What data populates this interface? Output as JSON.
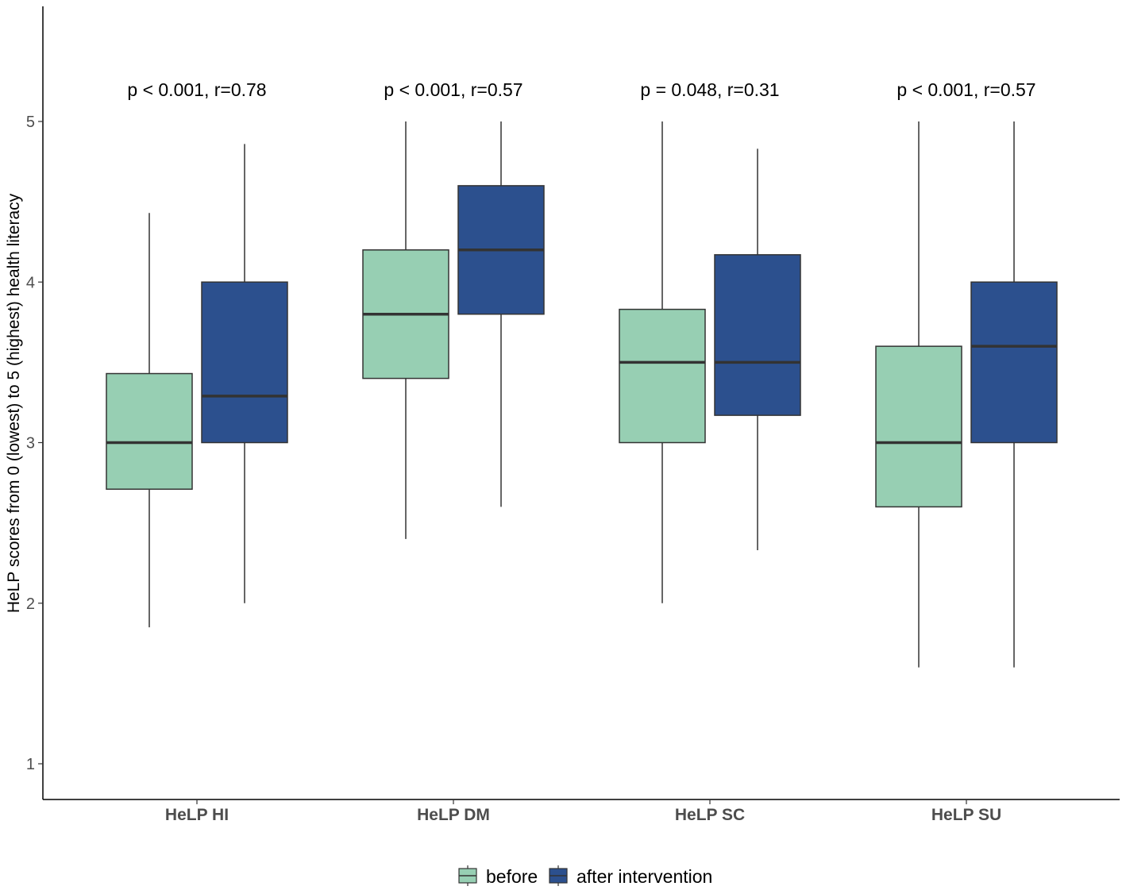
{
  "chart_data": {
    "type": "boxplot",
    "ylabel": "HeLP scores from 0 (lowest) to 5 (highest) health literacy",
    "xlabel": "",
    "ylim": [
      0.8,
      5.7
    ],
    "yticks": [
      1,
      2,
      3,
      4,
      5
    ],
    "categories": [
      "HeLP HI",
      "HeLP DM",
      "HeLP SC",
      "HeLP SU"
    ],
    "annotations": [
      "p < 0.001, r=0.78",
      "p < 0.001, r=0.57",
      "p = 0.048, r=0.31",
      "p < 0.001, r=0.57"
    ],
    "legend": {
      "position": "bottom"
    },
    "series": [
      {
        "name": "before",
        "color": "#97cfb3",
        "boxes": [
          {
            "min": 1.85,
            "q1": 2.71,
            "median": 3.0,
            "q3": 3.43,
            "max": 4.43
          },
          {
            "min": 2.4,
            "q1": 3.4,
            "median": 3.8,
            "q3": 4.2,
            "max": 5.0
          },
          {
            "min": 2.0,
            "q1": 3.0,
            "median": 3.5,
            "q3": 3.83,
            "max": 5.0
          },
          {
            "min": 1.6,
            "q1": 2.6,
            "median": 3.0,
            "q3": 3.6,
            "max": 5.0
          }
        ]
      },
      {
        "name": "after intervention",
        "color": "#2c508e",
        "boxes": [
          {
            "min": 2.0,
            "q1": 3.0,
            "median": 3.29,
            "q3": 4.0,
            "max": 4.86
          },
          {
            "min": 2.6,
            "q1": 3.8,
            "median": 4.2,
            "q3": 4.6,
            "max": 5.0
          },
          {
            "min": 2.33,
            "q1": 3.17,
            "median": 3.5,
            "q3": 4.17,
            "max": 4.83
          },
          {
            "min": 1.6,
            "q1": 3.0,
            "median": 3.6,
            "q3": 4.0,
            "max": 5.0
          }
        ]
      }
    ]
  }
}
